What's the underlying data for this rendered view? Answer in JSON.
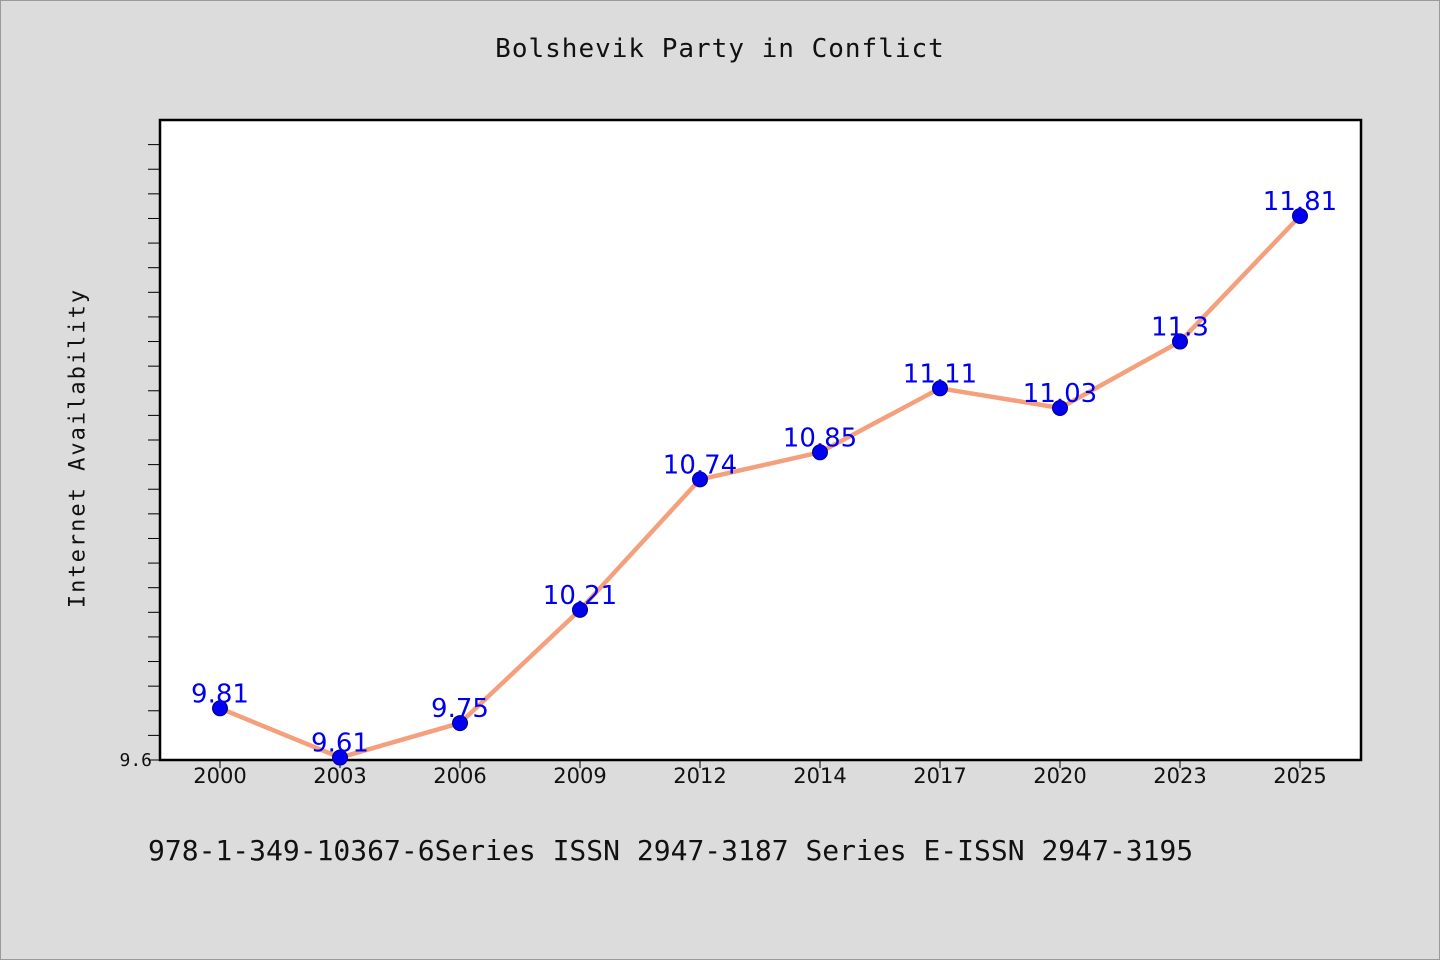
{
  "chart_data": {
    "type": "line",
    "title": "Bolshevik Party in Conflict",
    "xlabel": "",
    "ylabel": "Internet Availability",
    "categories": [
      "2000",
      "2003",
      "2006",
      "2009",
      "2012",
      "2014",
      "2017",
      "2020",
      "2023",
      "2025"
    ],
    "series": [
      {
        "values": [
          9.81,
          9.61,
          9.75,
          10.21,
          10.74,
          10.85,
          11.11,
          11.03,
          11.3,
          11.81
        ],
        "labels": [
          "9.81",
          "9.61",
          "9.75",
          "10.21",
          "10.74",
          "10.85",
          "11.11",
          "11.03",
          "11.3",
          "11.81"
        ]
      }
    ],
    "ylim": [
      9.6,
      12.2
    ],
    "ytick_labels": [
      "9.6"
    ],
    "grid": false,
    "legend": "none",
    "colors": {
      "line": "#f4a07c",
      "marker": "#0000ee",
      "label": "#0000ee",
      "axes": "#000000"
    }
  },
  "footer": {
    "text": "978-1-349-10367-6Series ISSN 2947-3187 Series E-ISSN 2947-3195"
  }
}
